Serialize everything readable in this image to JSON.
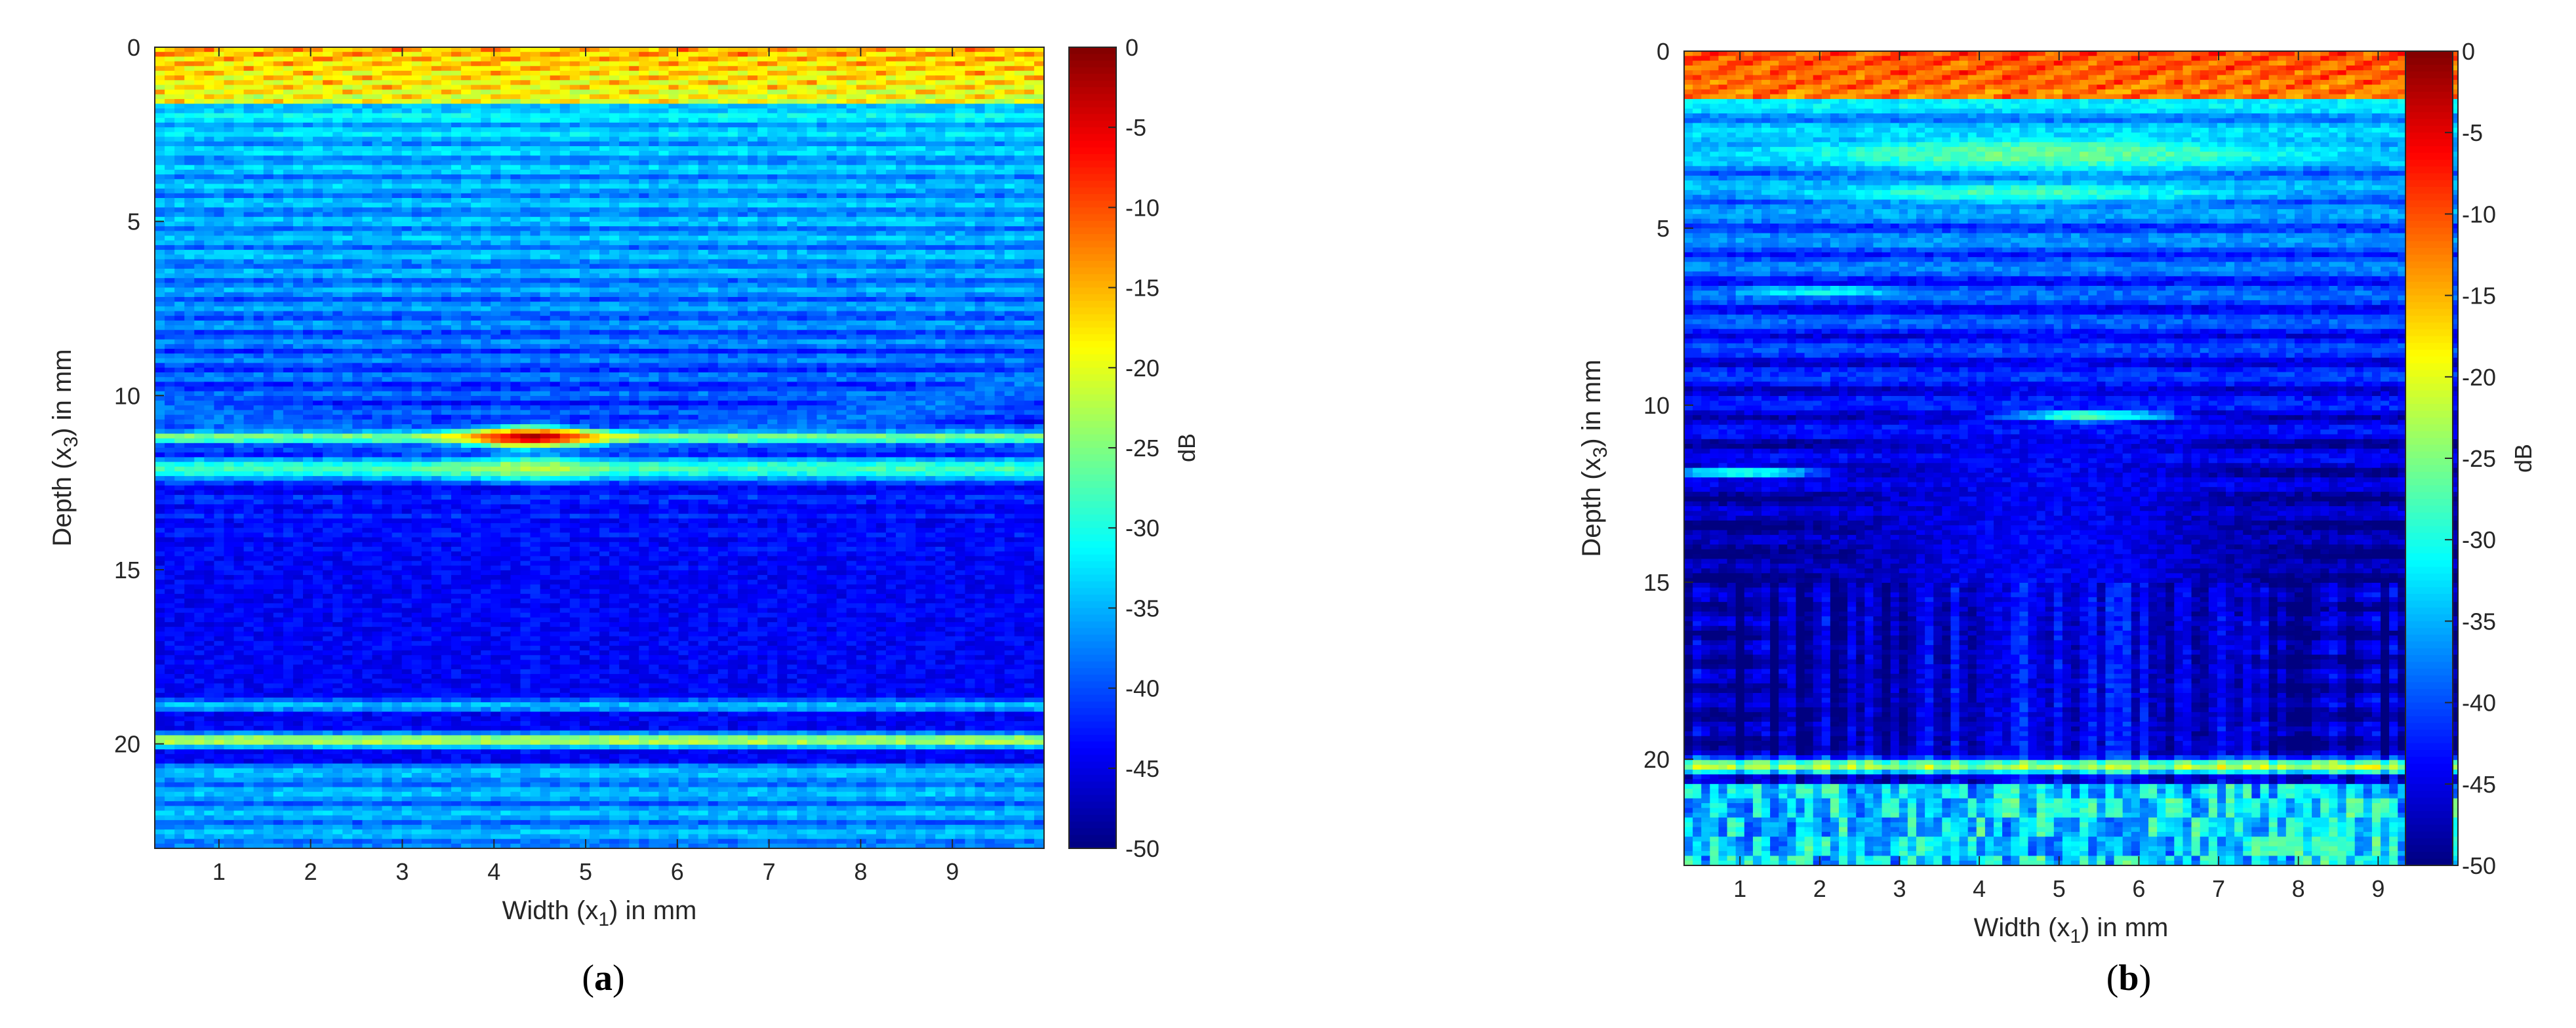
{
  "chart_data": [
    {
      "type": "heatmap",
      "panel_label": "a",
      "xlabel": {
        "pre": "Width (x",
        "sub": "1",
        "post": ") in mm"
      },
      "ylabel": {
        "pre": "Depth (x",
        "sub": "3",
        "post": ") in mm"
      },
      "xlim": [
        0.3,
        10
      ],
      "ylim": [
        0,
        23
      ],
      "y_reversed": true,
      "xticks": [
        1,
        2,
        3,
        4,
        5,
        6,
        7,
        8,
        9
      ],
      "yticks": [
        0,
        5,
        10,
        15,
        20
      ],
      "colorbar": {
        "label": "dB",
        "range": [
          -50,
          0
        ],
        "ticks": [
          0,
          -5,
          -10,
          -15,
          -20,
          -25,
          -30,
          -35,
          -40,
          -45,
          -50
        ],
        "colormap": "jet"
      },
      "features": [
        {
          "kind": "surface_echo",
          "depth_mm": 0.3,
          "level_db": -12
        },
        {
          "kind": "defect_reflection",
          "x_mm": 4.4,
          "depth_mm": 11.2,
          "level_db": -3
        },
        {
          "kind": "back_wall_echo",
          "depth_mm": 19.9,
          "level_db": -22
        }
      ]
    },
    {
      "type": "heatmap",
      "panel_label": "b",
      "xlabel": {
        "pre": "Width (x",
        "sub": "1",
        "post": ") in mm"
      },
      "ylabel": {
        "pre": "Depth (x",
        "sub": "3",
        "post": ") in mm"
      },
      "xlim": [
        0.3,
        10
      ],
      "ylim": [
        0,
        23
      ],
      "y_reversed": true,
      "xticks": [
        1,
        2,
        3,
        4,
        5,
        6,
        7,
        8,
        9
      ],
      "yticks": [
        0,
        5,
        10,
        15,
        20
      ],
      "colorbar": {
        "label": "dB",
        "range": [
          -50,
          0
        ],
        "ticks": [
          0,
          -5,
          -10,
          -15,
          -20,
          -25,
          -30,
          -35,
          -40,
          -45,
          -50
        ],
        "colormap": "jet"
      },
      "features": [
        {
          "kind": "surface_echo",
          "depth_mm": 0.5,
          "level_db": -5
        },
        {
          "kind": "defect_reflection",
          "x_mm": 5.4,
          "depth_mm": 10.3,
          "level_db": -27
        },
        {
          "kind": "reflection",
          "x_mm": 2.0,
          "depth_mm": 6.8,
          "level_db": -30
        },
        {
          "kind": "reflection",
          "x_mm": 1.0,
          "depth_mm": 11.9,
          "level_db": -28
        },
        {
          "kind": "back_wall_echo",
          "depth_mm": 20.2,
          "level_db": -23
        }
      ]
    }
  ]
}
